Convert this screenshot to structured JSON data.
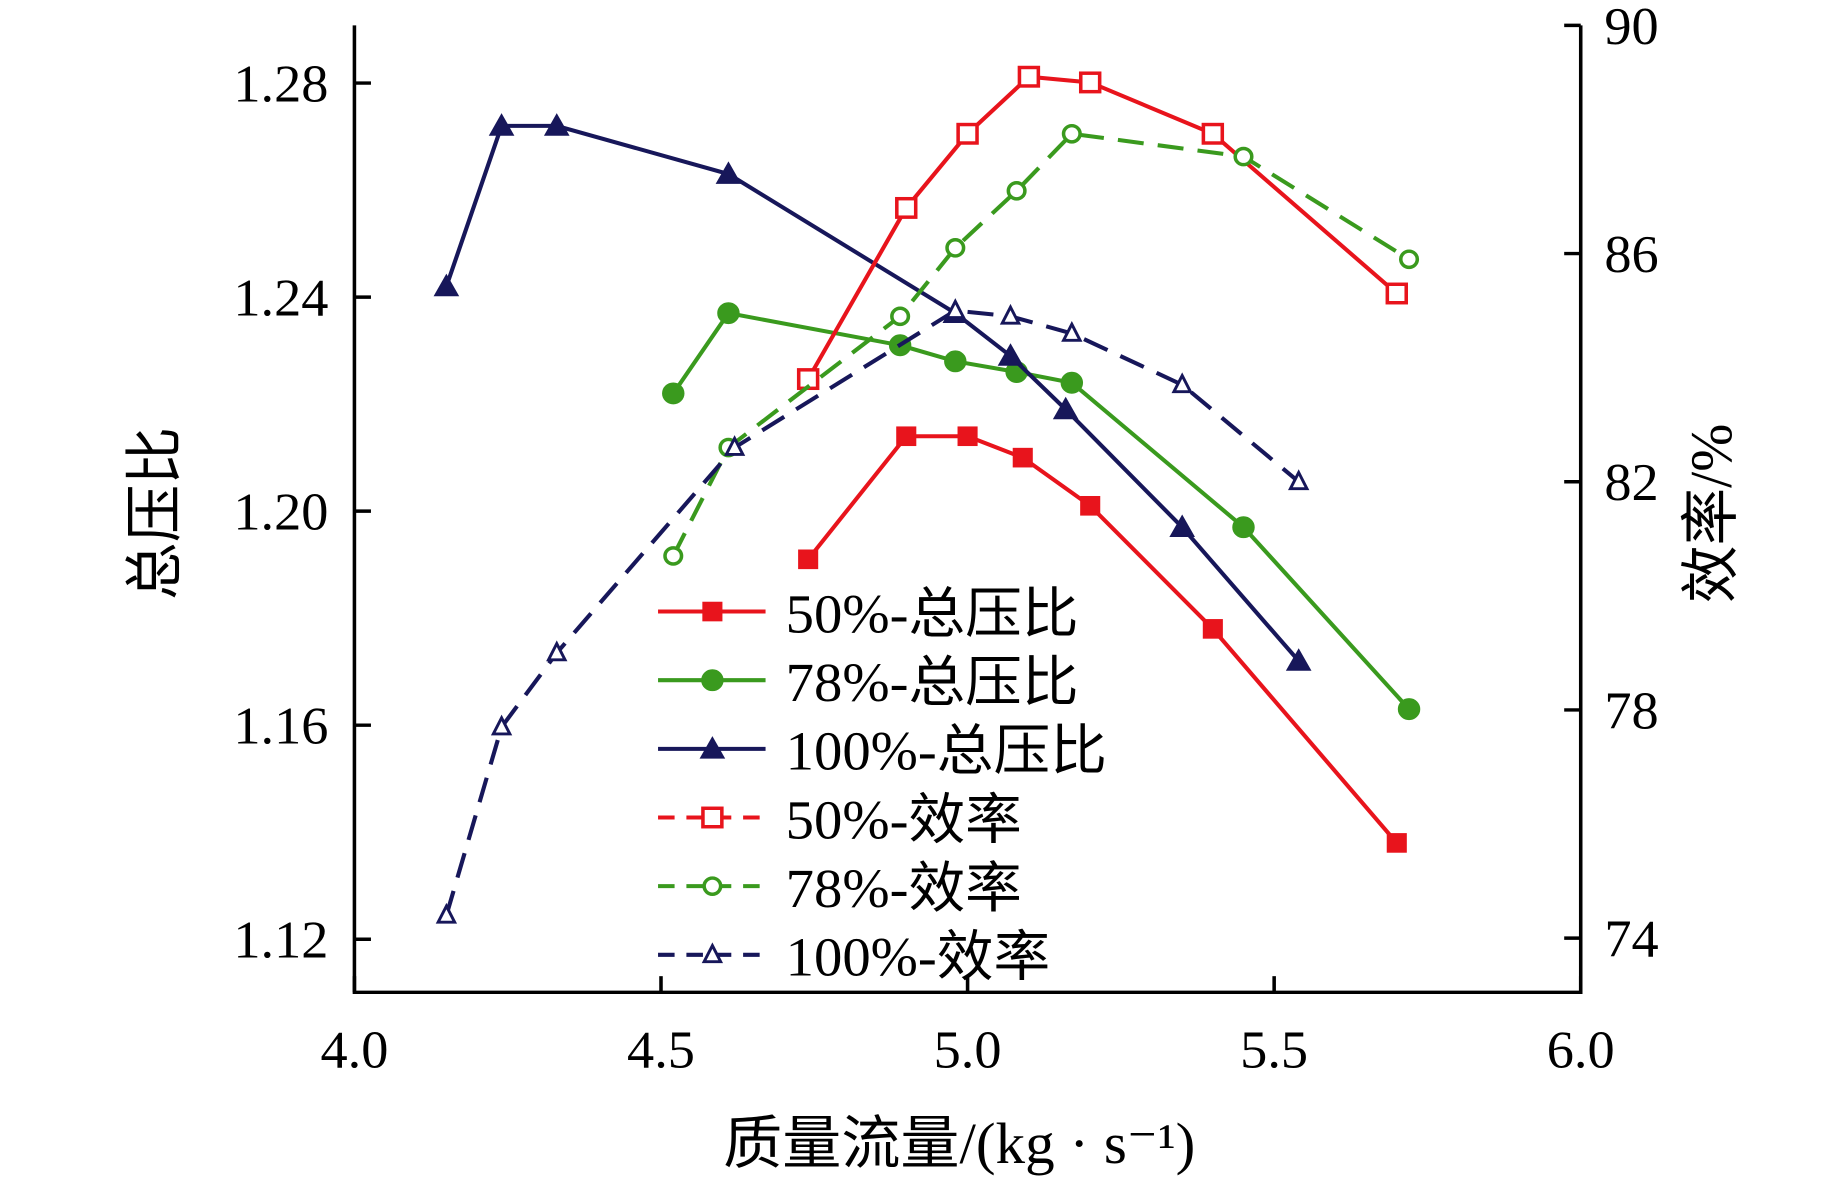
{
  "chart_data": {
    "type": "line",
    "title": "",
    "xlabel": "质量流量/(kg · s⁻¹)",
    "ylabel": "总压比",
    "y2label": "效率/%",
    "xlim": [
      4.0,
      6.0
    ],
    "ylim": [
      1.11,
      1.295
    ],
    "y2lim": [
      73,
      90
    ],
    "xticks": [
      "4.0",
      "4.5",
      "5.0",
      "5.5",
      "6.0"
    ],
    "yticks": [
      "1.12",
      "1.16",
      "1.20",
      "1.24",
      "1.28"
    ],
    "y2ticks": [
      "74",
      "78",
      "82",
      "86",
      "90"
    ],
    "grid": false,
    "legend_position": "bottom-center",
    "series": [
      {
        "name": "50%-总压比",
        "axis": "left",
        "color": "#e8141c",
        "marker": "square-filled",
        "dash": false,
        "x": [
          4.74,
          4.9,
          5.0,
          5.09,
          5.2,
          5.4,
          5.7
        ],
        "y": [
          1.191,
          1.214,
          1.214,
          1.21,
          1.201,
          1.178,
          1.138
        ]
      },
      {
        "name": "78%-总压比",
        "axis": "left",
        "color": "#3a9a1e",
        "marker": "circle-filled",
        "dash": false,
        "x": [
          4.52,
          4.61,
          4.89,
          4.98,
          5.08,
          5.17,
          5.45,
          5.72
        ],
        "y": [
          1.222,
          1.237,
          1.231,
          1.228,
          1.226,
          1.224,
          1.197,
          1.163
        ]
      },
      {
        "name": "100%-总压比",
        "axis": "left",
        "color": "#17175a",
        "marker": "triangle-filled",
        "dash": false,
        "x": [
          4.15,
          4.24,
          4.33,
          4.61,
          4.98,
          5.07,
          5.16,
          5.35,
          5.54
        ],
        "y": [
          1.242,
          1.272,
          1.272,
          1.263,
          1.237,
          1.229,
          1.219,
          1.197,
          1.172
        ]
      },
      {
        "name": "50%-效率",
        "axis": "right",
        "color": "#e8141c",
        "marker": "square-open",
        "dash": false,
        "x": [
          4.74,
          4.9,
          5.0,
          5.1,
          5.2,
          5.4,
          5.7
        ],
        "y": [
          83.8,
          86.8,
          88.1,
          89.1,
          89.0,
          88.1,
          85.3
        ]
      },
      {
        "name": "78%-效率",
        "axis": "right",
        "color": "#3a9a1e",
        "marker": "circle-open",
        "dash": true,
        "x": [
          4.52,
          4.61,
          4.89,
          4.98,
          5.08,
          5.17,
          5.45,
          5.72
        ],
        "y": [
          80.7,
          82.6,
          84.9,
          86.1,
          87.1,
          88.1,
          87.7,
          85.9
        ]
      },
      {
        "name": "100%-效率",
        "axis": "right",
        "color": "#17175a",
        "marker": "triangle-open",
        "dash": true,
        "x": [
          4.15,
          4.24,
          4.33,
          4.62,
          4.98,
          5.07,
          5.17,
          5.35,
          5.54
        ],
        "y": [
          74.4,
          77.7,
          79.0,
          82.6,
          85.0,
          84.9,
          84.6,
          83.7,
          82.0
        ]
      }
    ]
  }
}
